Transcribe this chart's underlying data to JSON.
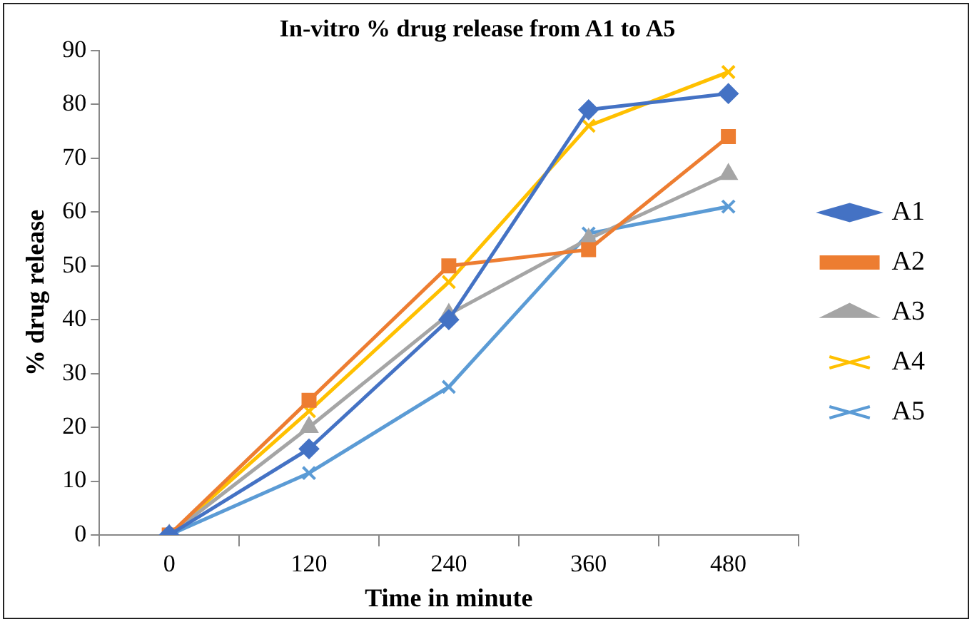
{
  "chart_data": {
    "type": "line",
    "title": "In-vitro % drug release from A1 to A5",
    "xlabel": "Time in minute",
    "ylabel": "% drug release",
    "categories": [
      "0",
      "120",
      "240",
      "360",
      "480"
    ],
    "series": [
      {
        "name": "A1",
        "color": "#4472c4",
        "marker": "diamond",
        "values": [
          0,
          16,
          40,
          79,
          82
        ]
      },
      {
        "name": "A2",
        "color": "#ed7d31",
        "marker": "square",
        "values": [
          0,
          25,
          50,
          53,
          74
        ]
      },
      {
        "name": "A3",
        "color": "#a5a5a5",
        "marker": "triangle",
        "values": [
          0,
          20,
          41,
          55,
          67
        ]
      },
      {
        "name": "A4",
        "color": "#ffc000",
        "marker": "cross",
        "values": [
          0,
          23,
          47,
          76,
          86
        ]
      },
      {
        "name": "A5",
        "color": "#5b9bd5",
        "marker": "cross",
        "values": [
          0,
          11.5,
          27.5,
          56,
          61
        ]
      }
    ],
    "ylim": [
      0,
      90
    ],
    "yticks": [
      0,
      10,
      20,
      30,
      40,
      50,
      60,
      70,
      80,
      90
    ],
    "grid": false,
    "legend": "right",
    "line_style": "solid"
  }
}
